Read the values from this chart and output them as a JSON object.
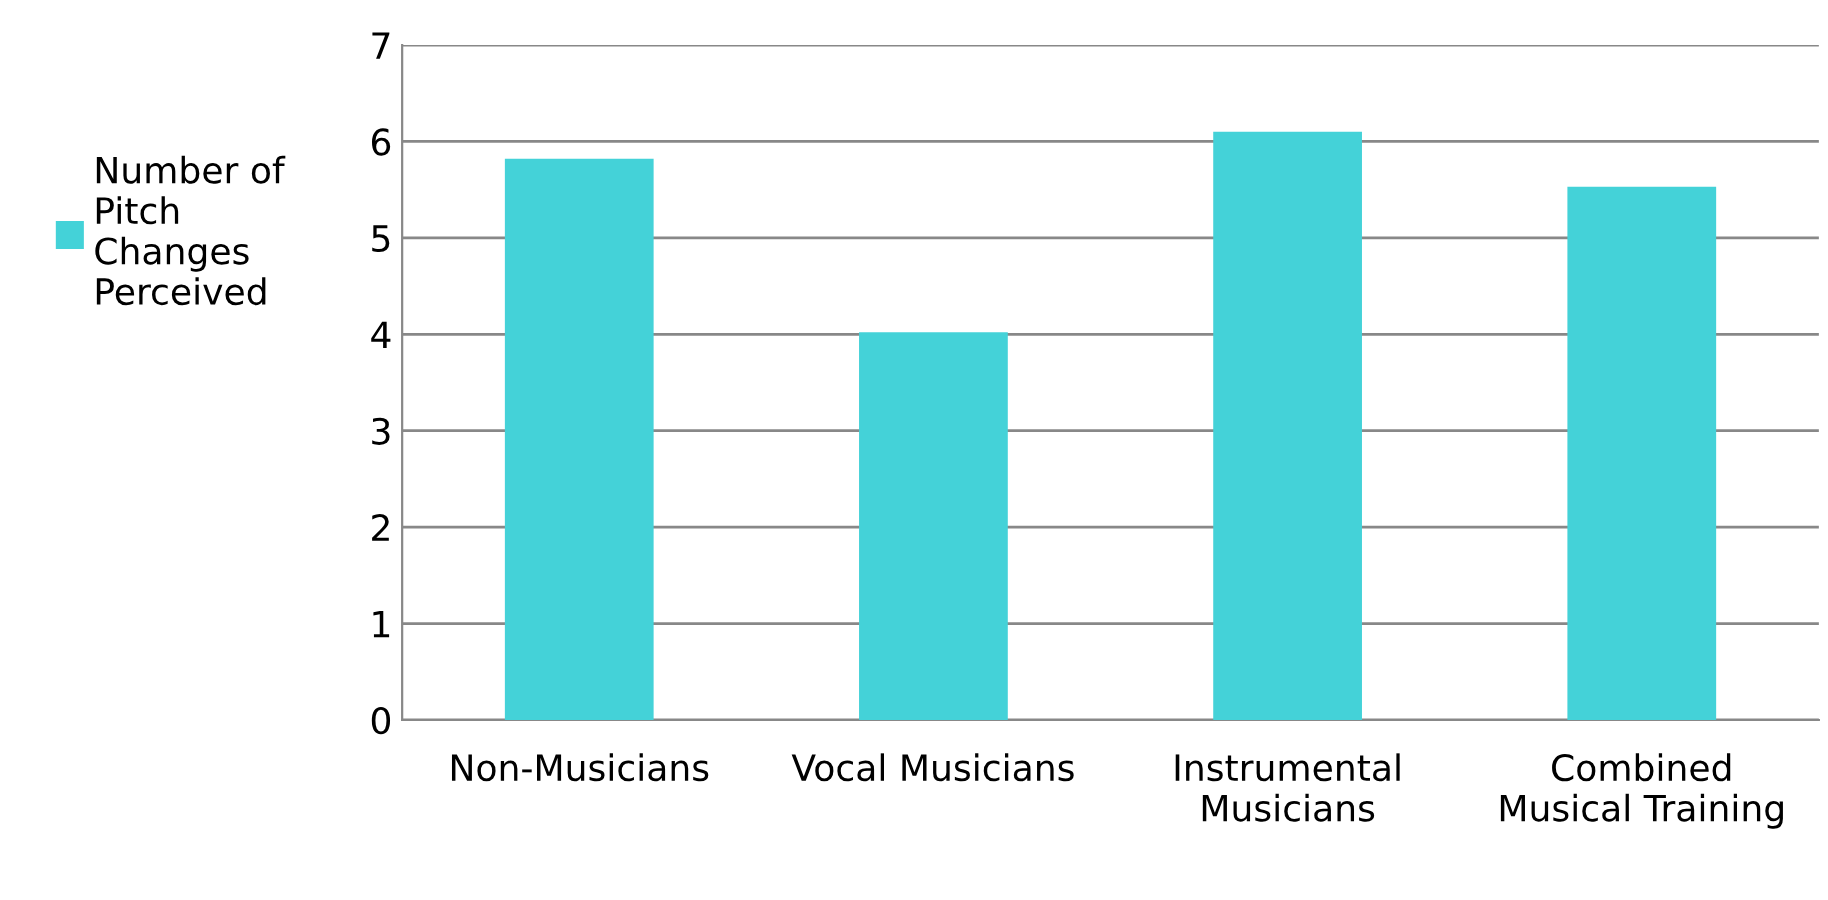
{
  "chart_data": {
    "type": "bar",
    "categories": [
      "Non-Musicians",
      "Vocal Musicians",
      "Instrumental\nMusicians",
      "Combined\nMusical Training"
    ],
    "series": [
      {
        "name": "Number of\nPitch\nChanges\nPerceived",
        "color": "#44d2d8",
        "values": [
          5.82,
          4.02,
          6.1,
          5.53
        ]
      }
    ],
    "ylim": [
      0,
      7
    ],
    "yticks": [
      0,
      1,
      2,
      3,
      4,
      5,
      6,
      7
    ],
    "grid": "y",
    "legend": "left"
  }
}
